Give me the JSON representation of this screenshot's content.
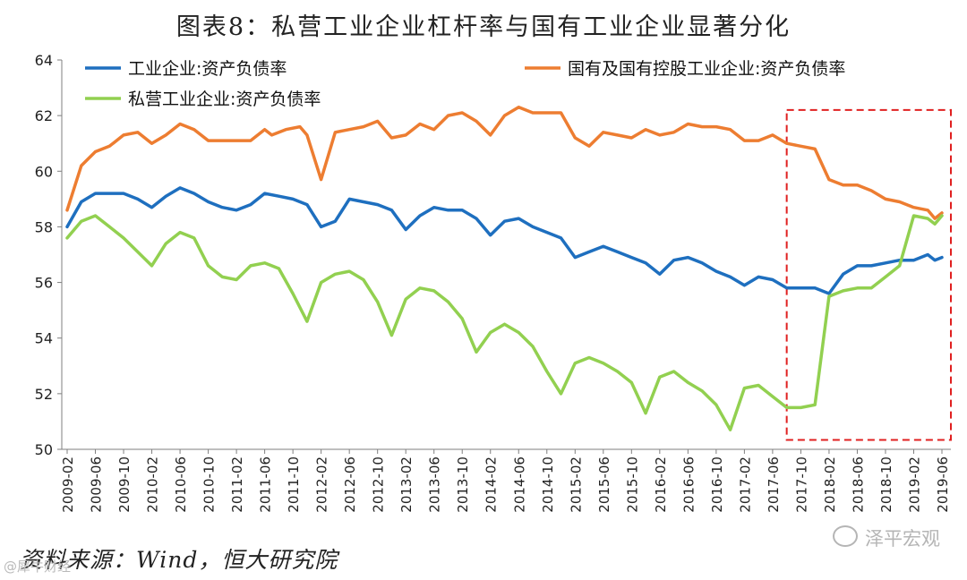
{
  "title": "图表8：私营工业企业杠杆率与国有工业企业显著分化",
  "source": "资料来源：Wind，恒大研究院",
  "watermark_left": "@犀牛财经",
  "watermark_right": "泽平宏观",
  "chart_data": {
    "type": "line",
    "title": "图表8：私营工业企业杠杆率与国有工业企业显著分化",
    "xlabel": "",
    "ylabel": "",
    "ylim": [
      50,
      64
    ],
    "yticks": [
      50,
      52,
      54,
      56,
      58,
      60,
      62,
      64
    ],
    "x_start": "2009-02",
    "x_end": "2019-06",
    "xtick_labels": [
      "2009-02",
      "2009-06",
      "2009-10",
      "2010-02",
      "2010-06",
      "2010-10",
      "2011-02",
      "2011-06",
      "2011-10",
      "2012-02",
      "2012-06",
      "2012-10",
      "2013-02",
      "2013-06",
      "2013-10",
      "2014-02",
      "2014-06",
      "2014-10",
      "2015-02",
      "2015-06",
      "2015-10",
      "2016-02",
      "2016-06",
      "2016-10",
      "2017-02",
      "2017-06",
      "2017-10",
      "2018-02",
      "2018-06",
      "2018-10",
      "2019-02",
      "2019-06"
    ],
    "highlight_box": {
      "from": "2017-08",
      "to": "2019-06",
      "y_range": [
        50.5,
        62.2
      ],
      "color": "#e02020",
      "style": "dashed"
    },
    "series": [
      {
        "name": "国有及国有控股工业企业:资产负债率",
        "color": "#ed7d31",
        "points": [
          [
            "2009-02",
            58.6
          ],
          [
            "2009-04",
            60.2
          ],
          [
            "2009-06",
            60.7
          ],
          [
            "2009-08",
            60.9
          ],
          [
            "2009-10",
            61.3
          ],
          [
            "2009-12",
            61.4
          ],
          [
            "2010-02",
            61.0
          ],
          [
            "2010-04",
            61.3
          ],
          [
            "2010-06",
            61.7
          ],
          [
            "2010-08",
            61.5
          ],
          [
            "2010-10",
            61.1
          ],
          [
            "2010-12",
            61.1
          ],
          [
            "2011-02",
            61.1
          ],
          [
            "2011-04",
            61.1
          ],
          [
            "2011-06",
            61.5
          ],
          [
            "2011-07",
            61.3
          ],
          [
            "2011-09",
            61.5
          ],
          [
            "2011-11",
            61.6
          ],
          [
            "2011-12",
            61.3
          ],
          [
            "2012-02",
            59.7
          ],
          [
            "2012-04",
            61.4
          ],
          [
            "2012-06",
            61.5
          ],
          [
            "2012-08",
            61.6
          ],
          [
            "2012-10",
            61.8
          ],
          [
            "2012-12",
            61.2
          ],
          [
            "2013-02",
            61.3
          ],
          [
            "2013-04",
            61.7
          ],
          [
            "2013-06",
            61.5
          ],
          [
            "2013-08",
            62.0
          ],
          [
            "2013-10",
            62.1
          ],
          [
            "2013-12",
            61.8
          ],
          [
            "2014-02",
            61.3
          ],
          [
            "2014-04",
            62.0
          ],
          [
            "2014-06",
            62.3
          ],
          [
            "2014-08",
            62.1
          ],
          [
            "2014-10",
            62.1
          ],
          [
            "2014-12",
            62.1
          ],
          [
            "2015-02",
            61.2
          ],
          [
            "2015-04",
            60.9
          ],
          [
            "2015-06",
            61.4
          ],
          [
            "2015-08",
            61.3
          ],
          [
            "2015-10",
            61.2
          ],
          [
            "2015-12",
            61.5
          ],
          [
            "2016-02",
            61.3
          ],
          [
            "2016-04",
            61.4
          ],
          [
            "2016-06",
            61.7
          ],
          [
            "2016-08",
            61.6
          ],
          [
            "2016-10",
            61.6
          ],
          [
            "2016-12",
            61.5
          ],
          [
            "2017-02",
            61.1
          ],
          [
            "2017-04",
            61.1
          ],
          [
            "2017-06",
            61.3
          ],
          [
            "2017-08",
            61.0
          ],
          [
            "2017-10",
            60.9
          ],
          [
            "2017-12",
            60.8
          ],
          [
            "2018-02",
            59.7
          ],
          [
            "2018-04",
            59.5
          ],
          [
            "2018-06",
            59.5
          ],
          [
            "2018-08",
            59.3
          ],
          [
            "2018-10",
            59.0
          ],
          [
            "2018-12",
            58.9
          ],
          [
            "2019-02",
            58.7
          ],
          [
            "2019-04",
            58.6
          ],
          [
            "2019-05",
            58.3
          ],
          [
            "2019-06",
            58.5
          ]
        ]
      },
      {
        "name": "工业企业:资产负债率",
        "color": "#1e6fbf",
        "points": [
          [
            "2009-02",
            58.0
          ],
          [
            "2009-04",
            58.9
          ],
          [
            "2009-06",
            59.2
          ],
          [
            "2009-08",
            59.2
          ],
          [
            "2009-10",
            59.2
          ],
          [
            "2009-12",
            59.0
          ],
          [
            "2010-02",
            58.7
          ],
          [
            "2010-04",
            59.1
          ],
          [
            "2010-06",
            59.4
          ],
          [
            "2010-08",
            59.2
          ],
          [
            "2010-10",
            58.9
          ],
          [
            "2010-12",
            58.7
          ],
          [
            "2011-02",
            58.6
          ],
          [
            "2011-04",
            58.8
          ],
          [
            "2011-06",
            59.2
          ],
          [
            "2011-08",
            59.1
          ],
          [
            "2011-10",
            59.0
          ],
          [
            "2011-12",
            58.8
          ],
          [
            "2012-02",
            58.0
          ],
          [
            "2012-04",
            58.2
          ],
          [
            "2012-06",
            59.0
          ],
          [
            "2012-08",
            58.9
          ],
          [
            "2012-10",
            58.8
          ],
          [
            "2012-12",
            58.6
          ],
          [
            "2013-02",
            57.9
          ],
          [
            "2013-04",
            58.4
          ],
          [
            "2013-06",
            58.7
          ],
          [
            "2013-08",
            58.6
          ],
          [
            "2013-10",
            58.6
          ],
          [
            "2013-12",
            58.3
          ],
          [
            "2014-02",
            57.7
          ],
          [
            "2014-04",
            58.2
          ],
          [
            "2014-06",
            58.3
          ],
          [
            "2014-08",
            58.0
          ],
          [
            "2014-10",
            57.8
          ],
          [
            "2014-12",
            57.6
          ],
          [
            "2015-02",
            56.9
          ],
          [
            "2015-04",
            57.1
          ],
          [
            "2015-06",
            57.3
          ],
          [
            "2015-08",
            57.1
          ],
          [
            "2015-10",
            56.9
          ],
          [
            "2015-12",
            56.7
          ],
          [
            "2016-02",
            56.3
          ],
          [
            "2016-04",
            56.8
          ],
          [
            "2016-06",
            56.9
          ],
          [
            "2016-08",
            56.7
          ],
          [
            "2016-10",
            56.4
          ],
          [
            "2016-12",
            56.2
          ],
          [
            "2017-02",
            55.9
          ],
          [
            "2017-04",
            56.2
          ],
          [
            "2017-06",
            56.1
          ],
          [
            "2017-08",
            55.8
          ],
          [
            "2017-10",
            55.8
          ],
          [
            "2017-12",
            55.8
          ],
          [
            "2018-02",
            55.6
          ],
          [
            "2018-04",
            56.3
          ],
          [
            "2018-06",
            56.6
          ],
          [
            "2018-08",
            56.6
          ],
          [
            "2018-10",
            56.7
          ],
          [
            "2018-12",
            56.8
          ],
          [
            "2019-02",
            56.8
          ],
          [
            "2019-04",
            57.0
          ],
          [
            "2019-05",
            56.8
          ],
          [
            "2019-06",
            56.9
          ]
        ]
      },
      {
        "name": "私营工业企业:资产负债率",
        "color": "#92d050",
        "points": [
          [
            "2009-02",
            57.6
          ],
          [
            "2009-04",
            58.2
          ],
          [
            "2009-06",
            58.4
          ],
          [
            "2009-08",
            58.0
          ],
          [
            "2009-10",
            57.6
          ],
          [
            "2009-12",
            57.1
          ],
          [
            "2010-02",
            56.6
          ],
          [
            "2010-04",
            57.4
          ],
          [
            "2010-06",
            57.8
          ],
          [
            "2010-08",
            57.6
          ],
          [
            "2010-10",
            56.6
          ],
          [
            "2010-12",
            56.2
          ],
          [
            "2011-02",
            56.1
          ],
          [
            "2011-04",
            56.6
          ],
          [
            "2011-06",
            56.7
          ],
          [
            "2011-08",
            56.5
          ],
          [
            "2011-10",
            55.6
          ],
          [
            "2011-12",
            54.6
          ],
          [
            "2012-02",
            56.0
          ],
          [
            "2012-04",
            56.3
          ],
          [
            "2012-06",
            56.4
          ],
          [
            "2012-08",
            56.1
          ],
          [
            "2012-10",
            55.3
          ],
          [
            "2012-12",
            54.1
          ],
          [
            "2013-02",
            55.4
          ],
          [
            "2013-04",
            55.8
          ],
          [
            "2013-06",
            55.7
          ],
          [
            "2013-08",
            55.3
          ],
          [
            "2013-10",
            54.7
          ],
          [
            "2013-12",
            53.5
          ],
          [
            "2014-02",
            54.2
          ],
          [
            "2014-04",
            54.5
          ],
          [
            "2014-06",
            54.2
          ],
          [
            "2014-08",
            53.7
          ],
          [
            "2014-10",
            52.8
          ],
          [
            "2014-12",
            52.0
          ],
          [
            "2015-02",
            53.1
          ],
          [
            "2015-04",
            53.3
          ],
          [
            "2015-06",
            53.1
          ],
          [
            "2015-08",
            52.8
          ],
          [
            "2015-10",
            52.4
          ],
          [
            "2015-12",
            51.3
          ],
          [
            "2016-02",
            52.6
          ],
          [
            "2016-04",
            52.8
          ],
          [
            "2016-06",
            52.4
          ],
          [
            "2016-08",
            52.1
          ],
          [
            "2016-10",
            51.6
          ],
          [
            "2016-12",
            50.7
          ],
          [
            "2017-02",
            52.2
          ],
          [
            "2017-04",
            52.3
          ],
          [
            "2017-06",
            51.9
          ],
          [
            "2017-08",
            51.5
          ],
          [
            "2017-10",
            51.5
          ],
          [
            "2017-12",
            51.6
          ],
          [
            "2018-02",
            55.5
          ],
          [
            "2018-04",
            55.7
          ],
          [
            "2018-06",
            55.8
          ],
          [
            "2018-08",
            55.8
          ],
          [
            "2018-10",
            56.2
          ],
          [
            "2018-12",
            56.6
          ],
          [
            "2019-02",
            58.4
          ],
          [
            "2019-04",
            58.3
          ],
          [
            "2019-05",
            58.1
          ],
          [
            "2019-06",
            58.4
          ]
        ]
      }
    ]
  }
}
